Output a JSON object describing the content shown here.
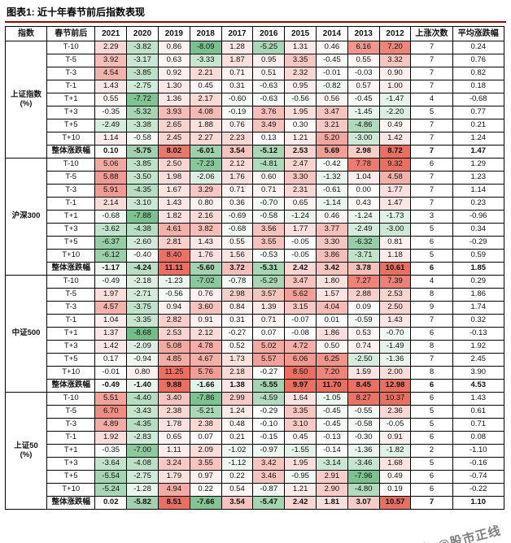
{
  "title": "图表1: 近十年春节前后指数表现",
  "watermark": "头条 @股市正线",
  "colors": {
    "positive_max": "#e96f63",
    "negative_max": "#74bd88",
    "title_rule": "#8f0a0e",
    "grid": "#000000"
  },
  "chart_data": {
    "type": "table",
    "title": "近十年春节前后指数表现",
    "columns": [
      "指数",
      "春节前后",
      "2021",
      "2020",
      "2019",
      "2018",
      "2017",
      "2016",
      "2015",
      "2014",
      "2013",
      "2012",
      "上涨次数",
      "平均涨跌幅"
    ],
    "row_labels": [
      "T-10",
      "T-5",
      "T-3",
      "T-1",
      "T+1",
      "T+3",
      "T+5",
      "T+10",
      "整体涨跌幅"
    ],
    "groups": [
      {
        "name": "上证指数",
        "unit": "(%)",
        "rows": [
          {
            "label": "T-10",
            "values": [
              2.29,
              -3.82,
              0.86,
              -8.09,
              1.28,
              -5.25,
              1.31,
              0.46,
              6.16,
              7.2
            ],
            "rises": 7,
            "avg": "0.24"
          },
          {
            "label": "T-5",
            "values": [
              3.92,
              -3.17,
              0.63,
              -3.33,
              1.87,
              0.95,
              3.35,
              -0.45,
              0.55,
              3.32
            ],
            "rises": 7,
            "avg": "0.76"
          },
          {
            "label": "T-3",
            "values": [
              4.54,
              -3.85,
              0.92,
              2.21,
              0.71,
              0.51,
              2.32,
              -0.01,
              -0.03,
              0.9
            ],
            "rises": 7,
            "avg": "0.82"
          },
          {
            "label": "T-1",
            "values": [
              1.43,
              -2.75,
              1.3,
              0.45,
              0.31,
              -0.63,
              0.95,
              -0.82,
              0.57,
              1.0
            ],
            "rises": 7,
            "avg": "0.18"
          },
          {
            "label": "T+1",
            "values": [
              0.55,
              -7.72,
              1.36,
              2.17,
              -0.6,
              -0.63,
              -0.56,
              0.56,
              -0.45,
              -1.47
            ],
            "rises": 4,
            "avg": "-0.68"
          },
          {
            "label": "T+3",
            "values": [
              -0.35,
              -5.32,
              3.93,
              4.08,
              -0.19,
              3.76,
              1.95,
              3.47,
              -1.45,
              -2.2
            ],
            "rises": 5,
            "avg": "0.77"
          },
          {
            "label": "T+5",
            "values": [
              -2.49,
              -3.38,
              2.65,
              1.88,
              0.76,
              3.49,
              0.3,
              3.21,
              -4.86,
              0.49
            ],
            "rises": 7,
            "avg": "0.21"
          },
          {
            "label": "T+10",
            "values": [
              1.14,
              -0.58,
              2.45,
              2.27,
              2.23,
              0.13,
              1.21,
              5.2,
              -3.0,
              1.42
            ],
            "rises": 7,
            "avg": "1.24"
          },
          {
            "label": "整体涨跌幅",
            "values": [
              0.1,
              -5.75,
              8.02,
              -6.01,
              3.54,
              -5.12,
              2.53,
              5.69,
              2.98,
              8.72
            ],
            "rises": 7,
            "avg": "1.47"
          }
        ]
      },
      {
        "name": "沪深300",
        "unit": "",
        "rows": [
          {
            "label": "T-10",
            "values": [
              5.06,
              -3.85,
              2.5,
              -7.23,
              2.12,
              -4.81,
              2.47,
              -0.42,
              7.78,
              9.32
            ],
            "rises": 6,
            "avg": "1.29"
          },
          {
            "label": "T-5",
            "values": [
              5.88,
              -3.5,
              1.98,
              -2.06,
              1.76,
              0.6,
              3.3,
              -1.32,
              1.04,
              4.58
            ],
            "rises": 7,
            "avg": "1.23"
          },
          {
            "label": "T-3",
            "values": [
              5.91,
              -4.35,
              1.67,
              3.29,
              0.71,
              0.71,
              2.31,
              -0.61,
              0.0,
              1.77
            ],
            "rises": 7,
            "avg": "1.14"
          },
          {
            "label": "T-1",
            "values": [
              2.14,
              -3.1,
              1.43,
              0.8,
              0.36,
              -0.7,
              0.65,
              -1.14,
              0.43,
              1.47
            ],
            "rises": 7,
            "avg": "0.23"
          },
          {
            "label": "T+1",
            "values": [
              -0.68,
              -7.88,
              1.82,
              2.16,
              -0.69,
              -0.58,
              -1.24,
              0.46,
              -1.24,
              -1.73
            ],
            "rises": 3,
            "avg": "-0.96"
          },
          {
            "label": "T+3",
            "values": [
              -3.62,
              -4.38,
              4.61,
              3.82,
              -0.68,
              3.56,
              1.77,
              3.77,
              -2.49,
              -3.0
            ],
            "rises": 5,
            "avg": "0.34"
          },
          {
            "label": "T+5",
            "values": [
              -6.37,
              -2.6,
              2.81,
              1.43,
              0.55,
              3.55,
              -0.05,
              3.3,
              -6.32,
              0.81
            ],
            "rises": 6,
            "avg": "-0.29"
          },
          {
            "label": "T+10",
            "values": [
              -6.12,
              -0.4,
              8.4,
              1.76,
              1.56,
              -0.53,
              -0.05,
              3.86,
              -3.71,
              1.18
            ],
            "rises": 5,
            "avg": "0.59"
          },
          {
            "label": "整体涨跌幅",
            "values": [
              -1.17,
              -4.24,
              11.11,
              -5.6,
              3.72,
              -5.31,
              2.42,
              3.42,
              3.78,
              10.61
            ],
            "rises": 6,
            "avg": "1.85"
          }
        ]
      },
      {
        "name": "中证500",
        "unit": "",
        "rows": [
          {
            "label": "T-10",
            "values": [
              -0.49,
              -2.18,
              -1.23,
              -7.02,
              -0.78,
              -5.29,
              3.47,
              1.8,
              7.27,
              7.39
            ],
            "rises": 4,
            "avg": "0.29"
          },
          {
            "label": "T-5",
            "values": [
              1.97,
              -2.71,
              -0.56,
              0.76,
              2.98,
              3.57,
              5.62,
              1.57,
              2.88,
              2.53
            ],
            "rises": 8,
            "avg": "1.86"
          },
          {
            "label": "T-3",
            "values": [
              4.57,
              -3.75,
              0.94,
              3.6,
              0.84,
              1.39,
              3.15,
              4.04,
              0.09,
              2.5
            ],
            "rises": 9,
            "avg": "1.74"
          },
          {
            "label": "T-1",
            "values": [
              1.04,
              -3.35,
              2.82,
              0.91,
              0.31,
              0.71,
              -0.07,
              0.01,
              -0.59,
              1.43
            ],
            "rises": 7,
            "avg": "0.32"
          },
          {
            "label": "T+1",
            "values": [
              1.37,
              -8.68,
              2.53,
              2.12,
              -0.27,
              0.07,
              -0.08,
              1.86,
              0.53,
              -0.7
            ],
            "rises": 6,
            "avg": "-0.13"
          },
          {
            "label": "T+3",
            "values": [
              1.42,
              -2.09,
              5.08,
              4.78,
              0.52,
              5.02,
              4.72,
              0.5,
              0.74,
              -1.49
            ],
            "rises": 8,
            "avg": "1.92"
          },
          {
            "label": "T+5",
            "values": [
              0.17,
              -0.94,
              4.85,
              4.67,
              1.73,
              5.57,
              6.06,
              6.25,
              -2.5,
              -1.36
            ],
            "rises": 7,
            "avg": "2.45"
          },
          {
            "label": "T+10",
            "values": [
              -0.01,
              0.8,
              11.25,
              5.76,
              2.18,
              -0.27,
              8.5,
              7.2,
              1.59,
              2.0
            ],
            "rises": 8,
            "avg": "3.90"
          },
          {
            "label": "整体涨跌幅",
            "values": [
              -0.49,
              -1.4,
              9.88,
              -1.66,
              1.38,
              -5.55,
              9.97,
              11.7,
              8.45,
              12.98
            ],
            "rises": 6,
            "avg": "4.53"
          }
        ]
      },
      {
        "name": "上证50",
        "unit": "(%)",
        "rows": [
          {
            "label": "T-10",
            "values": [
              5.51,
              -4.4,
              3.4,
              -7.86,
              2.99,
              -4.59,
              1.64,
              -1.05,
              8.27,
              10.37
            ],
            "rises": 6,
            "avg": "1.43"
          },
          {
            "label": "T-5",
            "values": [
              6.7,
              -3.43,
              2.38,
              -5.21,
              1.24,
              -0.29,
              3.35,
              -0.45,
              -0.55,
              2.36
            ],
            "rises": 5,
            "avg": "0.61"
          },
          {
            "label": "T-3",
            "values": [
              4.89,
              -4.35,
              1.78,
              2.38,
              0.48,
              -0.1,
              3.1,
              -0.45,
              -0.58,
              -0.05
            ],
            "rises": 5,
            "avg": "0.71"
          },
          {
            "label": "T-1",
            "values": [
              1.92,
              -2.83,
              0.65,
              0.07,
              0.21,
              -0.15,
              0.45,
              -0.13,
              -0.3,
              0.91
            ],
            "rises": 6,
            "avg": "0.08"
          },
          {
            "label": "T+1",
            "values": [
              -0.35,
              -7.0,
              1.11,
              2.09,
              -1.02,
              -0.97,
              -1.55,
              -0.14,
              -1.36,
              -1.82
            ],
            "rises": 2,
            "avg": "-1.10"
          },
          {
            "label": "T+3",
            "values": [
              -3.64,
              -4.08,
              3.24,
              3.55,
              -1.12,
              3.42,
              1.95,
              -3.14,
              -3.46,
              1.68
            ],
            "rises": 5,
            "avg": "-0.16"
          },
          {
            "label": "T+5",
            "values": [
              -5.54,
              -2.75,
              1.79,
              0.97,
              0.22,
              3.46,
              -0.95,
              2.91,
              -7.96,
              0.49
            ],
            "rises": 6,
            "avg": "-0.74"
          },
          {
            "label": "T+10",
            "values": [
              -5.24,
              -1.28,
              4.94,
              0.22,
              0.54,
              -0.87,
              1.21,
              2.9,
              -4.8,
              0.19
            ],
            "rises": 6,
            "avg": "-0.22"
          },
          {
            "label": "整体涨跌幅",
            "values": [
              0.02,
              -5.82,
              8.51,
              -7.66,
              3.54,
              -5.47,
              2.42,
              1.81,
              3.07,
              10.57
            ],
            "rises": 7,
            "avg": "1.10"
          }
        ]
      }
    ],
    "legend": "红色=上涨 绿色=下跌 (单元格按涨跌幅深浅着色)",
    "column_widths_hint": [
      50,
      58,
      38,
      38,
      38,
      38,
      38,
      38,
      38,
      38,
      38,
      38,
      50,
      62
    ]
  }
}
